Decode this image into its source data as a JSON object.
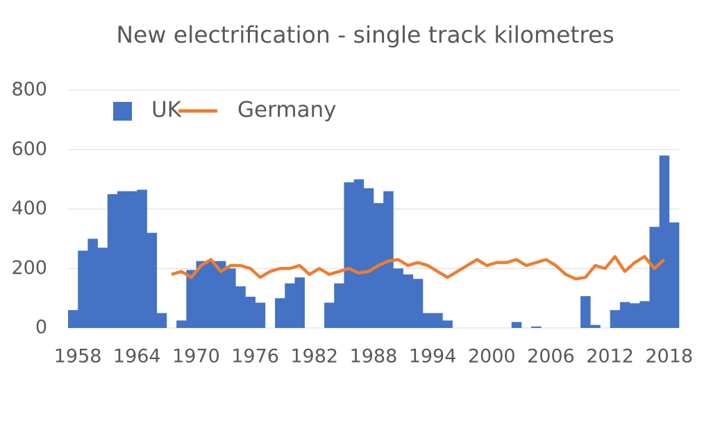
{
  "chart_data": {
    "type": "bar-line",
    "title": "New electrification - single track kilometres",
    "categories": [
      "1958",
      null,
      null,
      null,
      null,
      null,
      "1964",
      null,
      null,
      null,
      null,
      null,
      "1970",
      null,
      null,
      null,
      null,
      null,
      "1976",
      null,
      null,
      null,
      null,
      null,
      "1982",
      null,
      null,
      null,
      null,
      null,
      "1988",
      null,
      null,
      null,
      null,
      null,
      "1994",
      null,
      null,
      null,
      null,
      null,
      "2000",
      null,
      null,
      null,
      null,
      null,
      "2006",
      null,
      null,
      null,
      null,
      null,
      "2012",
      null,
      null,
      null,
      null,
      null,
      "2018",
      null
    ],
    "series": [
      {
        "name": "UK",
        "type": "bar",
        "color": "#4472c4",
        "values": [
          60,
          260,
          300,
          270,
          450,
          460,
          460,
          465,
          320,
          50,
          0,
          25,
          195,
          225,
          225,
          225,
          200,
          140,
          105,
          85,
          0,
          100,
          150,
          170,
          0,
          0,
          85,
          150,
          490,
          500,
          470,
          420,
          460,
          200,
          180,
          165,
          50,
          50,
          25,
          0,
          0,
          0,
          0,
          0,
          0,
          20,
          0,
          5,
          0,
          0,
          0,
          0,
          107,
          10,
          0,
          60,
          87,
          83,
          90,
          340,
          580,
          355
        ]
      },
      {
        "name": "Germany",
        "type": "line",
        "color": "#ed7d31",
        "values": [
          null,
          null,
          null,
          null,
          null,
          null,
          null,
          null,
          null,
          null,
          180,
          190,
          170,
          210,
          230,
          190,
          210,
          210,
          200,
          170,
          190,
          200,
          200,
          210,
          180,
          200,
          180,
          190,
          200,
          185,
          190,
          210,
          225,
          230,
          210,
          220,
          210,
          190,
          170,
          190,
          210,
          230,
          210,
          220,
          220,
          230,
          210,
          220,
          230,
          210,
          180,
          165,
          170,
          210,
          200,
          240,
          190,
          220,
          240,
          200,
          230,
          null
        ]
      }
    ],
    "ylim": [
      0,
      800
    ],
    "yticks": [
      0,
      200,
      400,
      600,
      800
    ],
    "grid": true,
    "legend": "top-left"
  }
}
